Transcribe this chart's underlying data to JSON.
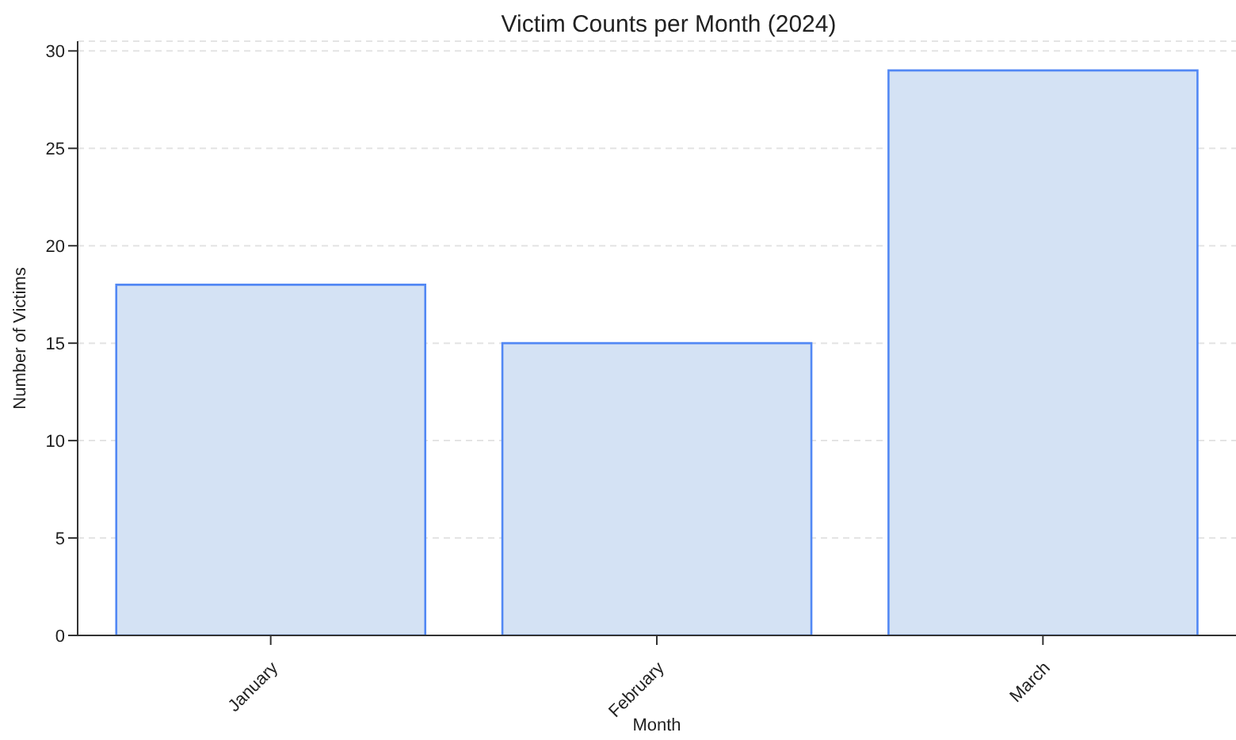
{
  "chart_data": {
    "type": "bar",
    "title": "Victim Counts per Month (2024)",
    "xlabel": "Month",
    "ylabel": "Number of Victims",
    "categories": [
      "January",
      "February",
      "March"
    ],
    "values": [
      18,
      15,
      29
    ],
    "color": "#d4e2f4",
    "ylim": [
      0,
      30.5
    ],
    "yticks": [
      0,
      5,
      10,
      15,
      20,
      25,
      30
    ],
    "grid": "y"
  }
}
